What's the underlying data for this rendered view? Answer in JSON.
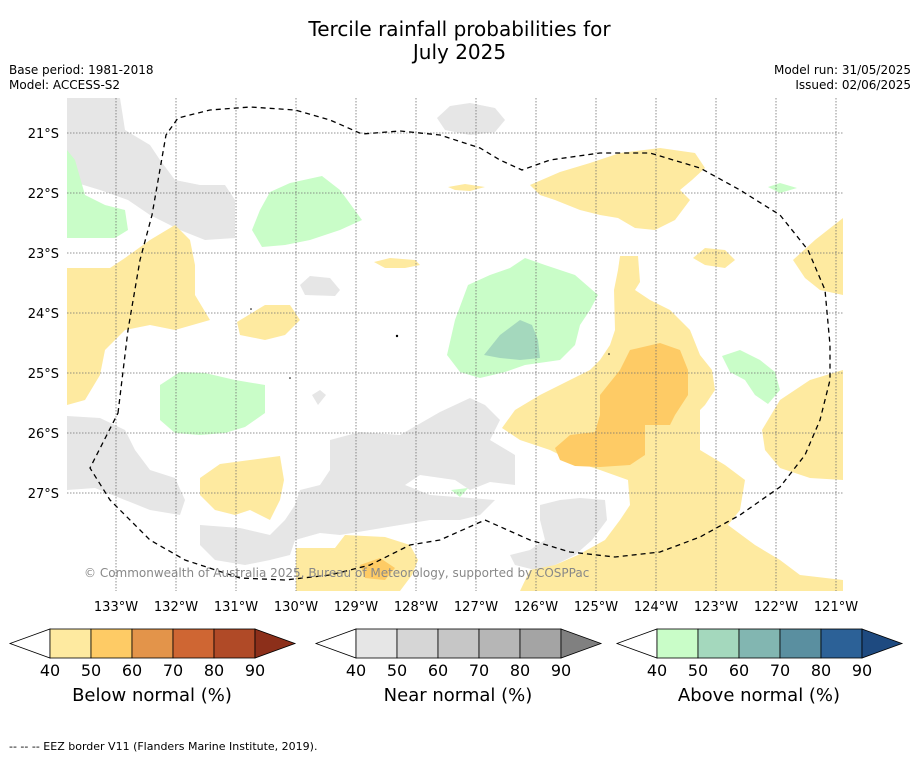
{
  "header": {
    "title_line1": "Tercile rainfall probabilities for",
    "title_line2": "July 2025",
    "base_period": "Base period: 1981-2018",
    "model": "Model: ACCESS-S2",
    "model_run": "Model run: 31/05/2025",
    "issued": "Issued: 02/06/2025"
  },
  "map": {
    "lat_labels": [
      "21°S",
      "22°S",
      "23°S",
      "24°S",
      "25°S",
      "26°S",
      "27°S"
    ],
    "lon_labels": [
      "133°W",
      "132°W",
      "131°W",
      "130°W",
      "129°W",
      "128°W",
      "127°W",
      "126°W",
      "125°W",
      "124°W",
      "123°W",
      "122°W",
      "121°W"
    ],
    "copyright": "© Commonwealth of Australia 2025, Bureau of Meteorology, supported by COSPPac",
    "grid": true,
    "boundary_style": "dashed"
  },
  "legends": [
    {
      "title": "Below normal (%)",
      "ticks": [
        "40",
        "50",
        "60",
        "70",
        "80",
        "90"
      ],
      "colors": [
        "#ffffff",
        "#feeaa0",
        "#fecb65",
        "#e3944a",
        "#cf6633",
        "#b04a27",
        "#8c2f1a"
      ]
    },
    {
      "title": "Near normal (%)",
      "ticks": [
        "40",
        "50",
        "60",
        "70",
        "80",
        "90"
      ],
      "colors": [
        "#ffffff",
        "#e6e6e6",
        "#d6d6d6",
        "#c6c6c6",
        "#b6b6b6",
        "#a4a4a4",
        "#808080"
      ]
    },
    {
      "title": "Above normal (%)",
      "ticks": [
        "40",
        "50",
        "60",
        "70",
        "80",
        "90"
      ],
      "colors": [
        "#ffffff",
        "#c9fdc8",
        "#a4d8bd",
        "#82b6b1",
        "#5a8fa0",
        "#2c6197",
        "#1e4a80"
      ]
    }
  ],
  "footer": {
    "eez_note": "--  --  -- EEZ border V11 (Flanders Marine Institute, 2019)."
  }
}
